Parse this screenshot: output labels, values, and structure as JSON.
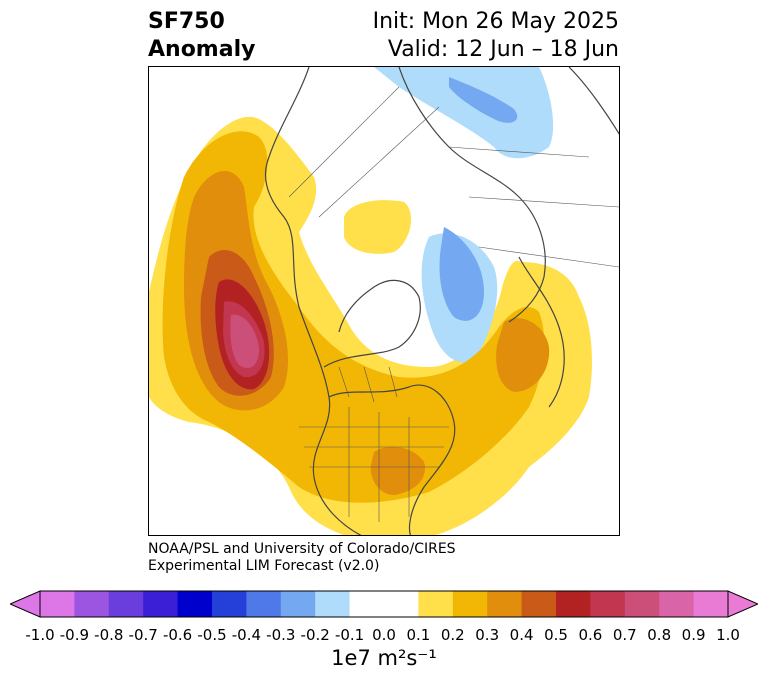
{
  "title": {
    "variable": "SF750",
    "kind": "Anomaly",
    "init": "Init: Mon 26 May 2025",
    "valid": "Valid: 12 Jun – 18 Jun"
  },
  "credit": {
    "line1": "NOAA/PSL and University of Colorado/CIRES",
    "line2": "Experimental LIM Forecast (v2.0)"
  },
  "colorbar": {
    "unit_label": "1e7 m²s⁻¹",
    "ticks": [
      "-1.0",
      "-0.9",
      "-0.8",
      "-0.7",
      "-0.6",
      "-0.5",
      "-0.4",
      "-0.3",
      "-0.2",
      "-0.1",
      "0.0",
      "0.1",
      "0.2",
      "0.3",
      "0.4",
      "0.5",
      "0.6",
      "0.7",
      "0.8",
      "0.9",
      "1.0"
    ],
    "colors": [
      "#dd77e8",
      "#9b55e0",
      "#6a3ddd",
      "#3a1fd6",
      "#0000cc",
      "#2540d8",
      "#4f78e8",
      "#74a8f0",
      "#aedcfa",
      "#ffffff",
      "#ffffff",
      "#ffe04a",
      "#f2b705",
      "#e08e0b",
      "#c95a17",
      "#b22222",
      "#c23650",
      "#cc4f7a",
      "#d964a8",
      "#e97bd4"
    ],
    "under_color": "#dd77e8",
    "over_color": "#e97bd4"
  },
  "map": {
    "projection": "north-polar-stereographic",
    "coastline_color": "#444444",
    "border_color": "#444444"
  }
}
